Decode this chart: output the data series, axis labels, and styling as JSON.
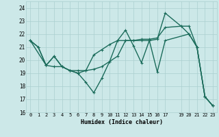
{
  "xlabel": "Humidex (Indice chaleur)",
  "bg_color": "#cce8e8",
  "line_color": "#1a6b5a",
  "grid_color": "#aacfcf",
  "xlim": [
    -0.5,
    23.5
  ],
  "ylim": [
    16,
    24.5
  ],
  "xticks": [
    0,
    1,
    2,
    3,
    4,
    5,
    6,
    7,
    8,
    9,
    10,
    11,
    12,
    13,
    14,
    15,
    16,
    17,
    19,
    20,
    21,
    22,
    23
  ],
  "xtick_labels": [
    "0",
    "1",
    "2",
    "3",
    "4",
    "5",
    "6",
    "7",
    "8",
    "9",
    "10",
    "11",
    "12",
    "13",
    "14",
    "15",
    "16",
    "17",
    "19",
    "20",
    "21",
    "22",
    "23"
  ],
  "yticks": [
    16,
    17,
    18,
    19,
    20,
    21,
    22,
    23,
    24
  ],
  "jagged_x": [
    0,
    1,
    2,
    3,
    4,
    5,
    6,
    7,
    8,
    9,
    10,
    11,
    12,
    13,
    14,
    15,
    16,
    17,
    20,
    21,
    22,
    23
  ],
  "jagged_y": [
    21.5,
    21.0,
    19.6,
    19.5,
    19.5,
    19.2,
    19.0,
    18.3,
    17.5,
    18.6,
    19.9,
    21.5,
    22.3,
    21.1,
    19.8,
    21.5,
    19.1,
    21.5,
    22.0,
    21.0,
    17.2,
    16.5
  ],
  "trend1_x": [
    0,
    2,
    3,
    4,
    5,
    6,
    7,
    8,
    9,
    10,
    11,
    12,
    13,
    14,
    15,
    16,
    17,
    19,
    20,
    21,
    22,
    23
  ],
  "trend1_y": [
    21.5,
    19.6,
    20.3,
    19.5,
    19.2,
    19.0,
    19.2,
    20.4,
    20.8,
    21.2,
    21.5,
    21.5,
    21.5,
    21.6,
    21.6,
    21.7,
    22.5,
    22.6,
    22.6,
    21.0,
    17.2,
    16.5
  ],
  "trend2_x": [
    0,
    1,
    2,
    3,
    4,
    5,
    6,
    7,
    8,
    9,
    10,
    11,
    12,
    13,
    14,
    15,
    16,
    17,
    19,
    20,
    21,
    22,
    23
  ],
  "trend2_y": [
    21.5,
    21.0,
    19.6,
    20.3,
    19.5,
    19.2,
    19.2,
    19.2,
    19.3,
    19.5,
    19.9,
    20.3,
    21.5,
    21.5,
    21.5,
    21.5,
    21.6,
    23.6,
    22.6,
    22.0,
    21.0,
    17.2,
    16.5
  ],
  "linewidth": 1.0,
  "markersize": 3.5
}
